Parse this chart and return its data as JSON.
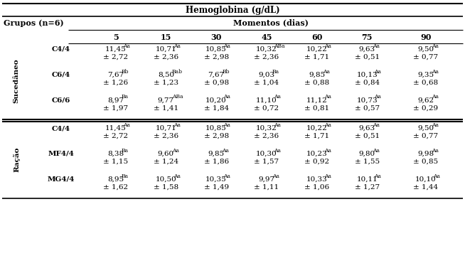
{
  "title": "Hemoglobina (g/dL)",
  "col_header": "Momentos (dias)",
  "row_group_header": "Grupos (n=6)",
  "days": [
    "5",
    "15",
    "30",
    "45",
    "60",
    "75",
    "90"
  ],
  "sections": [
    {
      "label": "Sucedâneo",
      "rows": [
        {
          "group": "C4/4",
          "values": [
            "11,45",
            "10,71",
            "10,85",
            "10,32",
            "10,22",
            "9,63",
            "9,50"
          ],
          "superscripts": [
            "Aa",
            "Aa",
            "Aa",
            "ABa",
            "Aa",
            "Aa",
            "Aa"
          ],
          "sds": [
            "± 2,72",
            "± 2,36",
            "± 2,98",
            "± 2,36",
            "± 1,71",
            "± 0,51",
            "± 0,77"
          ]
        },
        {
          "group": "C6/4",
          "values": [
            "7,67",
            "8,50",
            "7,67",
            "9,03",
            "9,85",
            "10,13",
            "9,35"
          ],
          "superscripts": [
            "Bb",
            "Bab",
            "Bb",
            "Ba",
            "Aa",
            "Aa",
            "Aa"
          ],
          "sds": [
            "± 1,26",
            "± 1,23",
            "± 0,98",
            "± 1,04",
            "± 0,88",
            "± 0,84",
            "± 0,68"
          ]
        },
        {
          "group": "C6/6",
          "values": [
            "8,97",
            "9,77",
            "10,20",
            "11,10",
            "11,12",
            "10,73",
            "9,62"
          ],
          "superscripts": [
            "Ba",
            "ABa",
            "Aa",
            "Aa",
            "Aa",
            "Aa",
            "Aa"
          ],
          "sds": [
            "± 1,97",
            "± 1,41",
            "± 1,84",
            "± 0,72",
            "± 0,81",
            "± 0,57",
            "± 0,29"
          ]
        }
      ]
    },
    {
      "label": "Ração",
      "rows": [
        {
          "group": "C4/4",
          "values": [
            "11,45",
            "10,71",
            "10,85",
            "10,32",
            "10,22",
            "9,63",
            "9,50"
          ],
          "superscripts": [
            "Aa",
            "Aa",
            "Aa",
            "Aa",
            "Aa",
            "Aa",
            "Aa"
          ],
          "sds": [
            "± 2,72",
            "± 2,36",
            "± 2,98",
            "± 2,36",
            "± 1,71",
            "± 0,51",
            "± 0,77"
          ]
        },
        {
          "group": "MF4/4",
          "values": [
            "8,38",
            "9,60",
            "9,85",
            "10,30",
            "10,23",
            "9,80",
            "9,98"
          ],
          "superscripts": [
            "Ba",
            "Aa",
            "Aa",
            "Aa",
            "Aa",
            "Aa",
            "Aa"
          ],
          "sds": [
            "± 1,15",
            "± 1,24",
            "± 1,86",
            "± 1,57",
            "± 0,92",
            "± 1,55",
            "± 0,85"
          ]
        },
        {
          "group": "MG4/4",
          "values": [
            "8,95",
            "10,50",
            "10,35",
            "9,97",
            "10,33",
            "10,11",
            "10,10"
          ],
          "superscripts": [
            "Ba",
            "Aa",
            "Aa",
            "Aa",
            "Aa",
            "Aa",
            "Aa"
          ],
          "sds": [
            "± 1,62",
            "± 1,58",
            "± 1,49",
            "± 1,11",
            "± 1,06",
            "± 1,27",
            "± 1,44"
          ]
        }
      ]
    }
  ],
  "bg_color": "#ffffff",
  "text_color": "#000000",
  "line_color": "#000000"
}
